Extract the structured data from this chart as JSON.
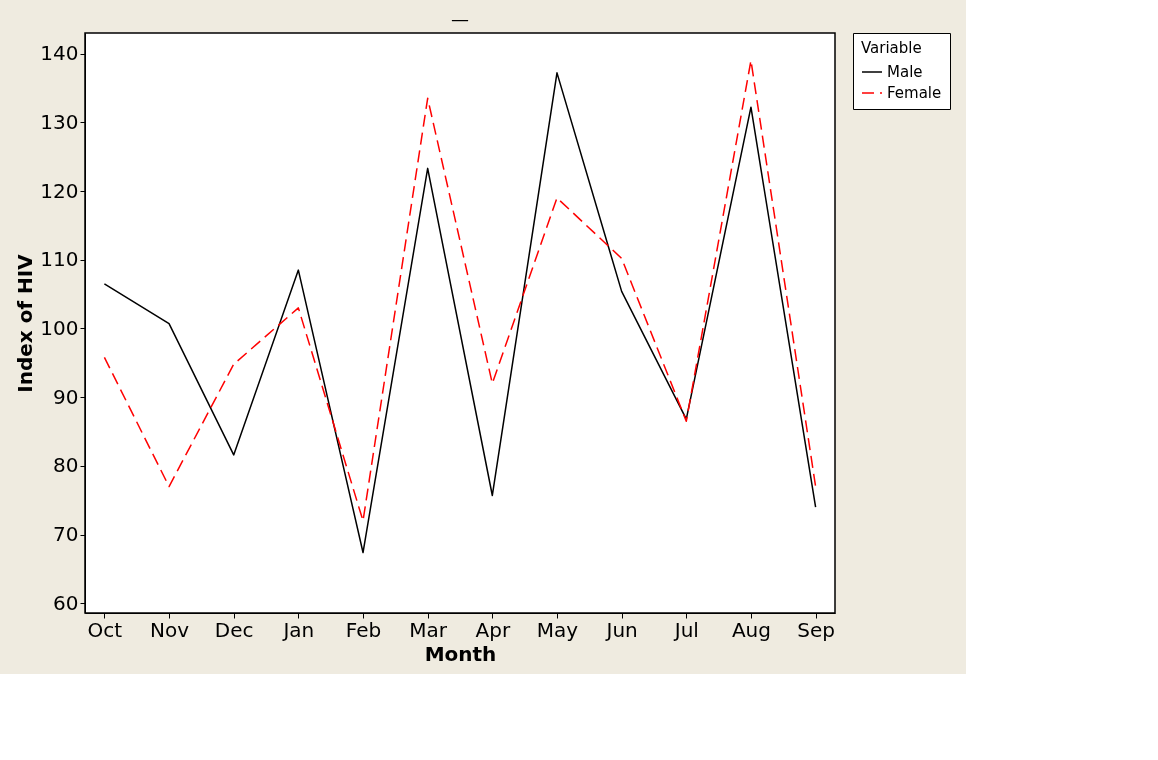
{
  "chart_data": {
    "type": "line",
    "title": "—",
    "xlabel": "Month",
    "ylabel": "Index of HIV",
    "legend_title": "Variable",
    "legend": "right",
    "categories": [
      "Oct",
      "Nov",
      "Dec",
      "Jan",
      "Feb",
      "Mar",
      "Apr",
      "May",
      "Jun",
      "Jul",
      "Aug",
      "Sep"
    ],
    "series": [
      {
        "name": "Male",
        "color": "#000000",
        "line_style": "solid",
        "values": [
          106.5,
          100.7,
          81.6,
          108.5,
          67.4,
          123.3,
          75.7,
          137.2,
          105.4,
          86.8,
          132.2,
          74
        ]
      },
      {
        "name": "Female",
        "color": "#ff0000",
        "line_style": "dashed",
        "values": [
          95.8,
          77,
          94.8,
          103,
          72,
          133.5,
          92,
          119,
          110.2,
          86.5,
          139,
          77
        ]
      }
    ],
    "ylim": [
      58.6,
      143
    ],
    "yticks": [
      60,
      70,
      80,
      90,
      100,
      110,
      120,
      130,
      140
    ],
    "grid": false,
    "marker": "none"
  }
}
